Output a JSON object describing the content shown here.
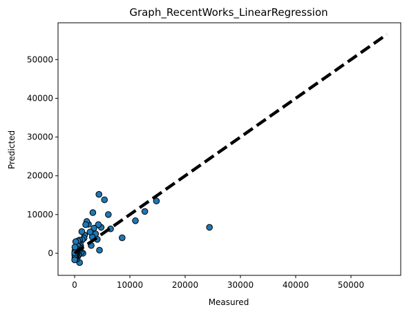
{
  "chart_data": {
    "type": "scatter",
    "title": "Graph_RecentWorks_LinearRegression",
    "xlabel": "Measured",
    "ylabel": "Predicted",
    "xlim": [
      -3000,
      59000
    ],
    "ylim": [
      -5700,
      59500
    ],
    "x_ticks": [
      0,
      10000,
      20000,
      30000,
      40000,
      50000
    ],
    "x_tick_labels": [
      "0",
      "10000",
      "20000",
      "30000",
      "40000",
      "50000"
    ],
    "y_ticks": [
      0,
      10000,
      20000,
      30000,
      40000,
      50000
    ],
    "y_tick_labels": [
      "0",
      "10000",
      "20000",
      "30000",
      "40000",
      "50000"
    ],
    "grid": false,
    "marker_color": "#1f77b4",
    "marker_edge_color": "#000000",
    "reference_line": {
      "style": "dashed",
      "color": "#000000",
      "x": [
        0,
        56500
      ],
      "y": [
        0,
        56500
      ]
    },
    "points": {
      "x": [
        24400,
        14800,
        12700,
        11000,
        8600,
        6500,
        6100,
        5400,
        4800,
        4500,
        4400,
        4300,
        4100,
        3800,
        3500,
        3300,
        3200,
        3000,
        2800,
        2500,
        2200,
        2000,
        1800,
        1700,
        1500,
        1400,
        1300,
        1200,
        1100,
        1000,
        1000,
        900,
        900,
        800,
        800,
        700,
        700,
        600,
        600,
        500,
        500,
        500,
        400,
        400,
        350,
        300,
        300,
        250,
        250,
        200,
        200,
        150,
        150,
        100,
        100,
        80,
        60,
        50,
        50,
        30,
        20,
        10
      ],
      "y": [
        6700,
        13500,
        10800,
        8400,
        4000,
        6300,
        10000,
        13800,
        6700,
        800,
        15200,
        7400,
        3600,
        5000,
        6500,
        10500,
        4200,
        2000,
        5500,
        7500,
        8200,
        7400,
        4700,
        3900,
        0,
        3500,
        5600,
        300,
        1900,
        2600,
        1000,
        -2400,
        3400,
        1500,
        500,
        -500,
        2800,
        3200,
        1000,
        -1000,
        500,
        2000,
        100,
        -1500,
        1200,
        -300,
        800,
        -600,
        400,
        3000,
        -1200,
        700,
        -900,
        200,
        -200,
        -1600,
        600,
        -1100,
        1600,
        -400,
        100,
        -1700
      ]
    }
  }
}
